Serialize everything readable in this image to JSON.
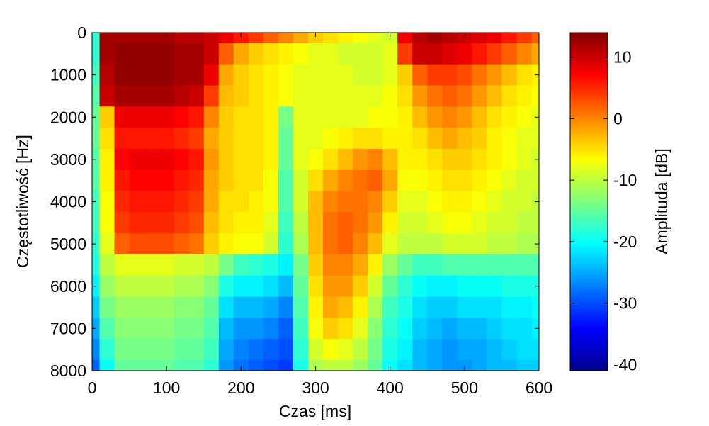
{
  "chart_data": {
    "type": "heatmap",
    "title": "",
    "xlabel": "Czas [ms]",
    "ylabel": "Częstotliwość [Hz]",
    "colorbar_label": "Amplituda [dB]",
    "xlim": [
      0,
      600
    ],
    "ylim": [
      0,
      8000
    ],
    "y_reversed": true,
    "clim": [
      -41,
      14
    ],
    "colormap": "jet",
    "grid": false,
    "x_ticks": [
      "0",
      "100",
      "200",
      "300",
      "400",
      "500",
      "600"
    ],
    "y_ticks": [
      "0",
      "1000",
      "2000",
      "3000",
      "4000",
      "5000",
      "6000",
      "7000",
      "8000"
    ],
    "colorbar_ticks": [
      "10",
      "0",
      "-10",
      "-20",
      "-30",
      "-40"
    ],
    "x_tick_values": [
      0,
      100,
      200,
      300,
      400,
      500,
      600
    ],
    "y_tick_values": [
      0,
      1000,
      2000,
      3000,
      4000,
      5000,
      6000,
      7000,
      8000
    ],
    "colorbar_tick_values": [
      10,
      0,
      -10,
      -20,
      -30,
      -40
    ],
    "time_ms": [
      0,
      20,
      40,
      60,
      80,
      100,
      120,
      140,
      160,
      180,
      200,
      220,
      240,
      260,
      280,
      300,
      320,
      340,
      360,
      380,
      400,
      420,
      440,
      460,
      480,
      500,
      520,
      540,
      560,
      580,
      600
    ],
    "freq_hz": [
      0,
      500,
      1000,
      1500,
      2000,
      2500,
      3000,
      3500,
      4000,
      4500,
      5000,
      5500,
      6000,
      6500,
      7000,
      7500,
      8000
    ],
    "amplitude_db": [
      [
        -18,
        12,
        12,
        12,
        12,
        12,
        11,
        11,
        10,
        8,
        6,
        4,
        2,
        0,
        -2,
        -4,
        -5,
        -6,
        -7,
        -8,
        -9,
        8,
        11,
        12,
        11,
        10,
        9,
        8,
        6,
        4,
        2
      ],
      [
        -18,
        12,
        13,
        13,
        13,
        13,
        12,
        12,
        10,
        2,
        -2,
        -4,
        -5,
        -6,
        -7,
        -8,
        -8,
        -9,
        -9,
        -9,
        -8,
        4,
        10,
        10,
        9,
        8,
        6,
        4,
        2,
        0,
        -2
      ],
      [
        -17,
        11,
        13,
        13,
        13,
        13,
        12,
        12,
        8,
        -2,
        -4,
        -5,
        -6,
        -7,
        -8,
        -8,
        -8,
        -8,
        -9,
        -9,
        -8,
        -4,
        2,
        4,
        4,
        3,
        1,
        -1,
        -3,
        -5,
        -6
      ],
      [
        -16,
        10,
        12,
        12,
        12,
        12,
        11,
        10,
        4,
        -3,
        -4,
        -5,
        -6,
        -7,
        -8,
        -8,
        -8,
        -8,
        -8,
        -8,
        -7,
        -5,
        -1,
        1,
        2,
        1,
        -1,
        -3,
        -5,
        -6,
        -7
      ],
      [
        -15,
        -4,
        8,
        8,
        8,
        8,
        7,
        6,
        0,
        -4,
        -5,
        -5,
        -6,
        -14,
        -8,
        -8,
        -8,
        -8,
        -8,
        -7,
        -7,
        -6,
        -3,
        -1,
        0,
        -1,
        -3,
        -5,
        -6,
        -7,
        -8
      ],
      [
        -15,
        -5,
        6,
        6,
        6,
        6,
        5,
        4,
        -2,
        -4,
        -5,
        -5,
        -6,
        -15,
        -8,
        -8,
        -7,
        -6,
        -5,
        -5,
        -6,
        -6,
        -5,
        -3,
        -2,
        -3,
        -4,
        -6,
        -7,
        -8,
        -8
      ],
      [
        -16,
        -6,
        7,
        8,
        8,
        8,
        7,
        6,
        -1,
        -4,
        -5,
        -5,
        -6,
        -15,
        -8,
        -7,
        -5,
        -3,
        -1,
        0,
        -3,
        -6,
        -6,
        -5,
        -4,
        -4,
        -5,
        -6,
        -7,
        -8,
        -9
      ],
      [
        -16,
        -6,
        6,
        7,
        7,
        7,
        6,
        5,
        -2,
        -4,
        -5,
        -5,
        -7,
        -16,
        -9,
        -5,
        -2,
        0,
        1,
        2,
        -2,
        -7,
        -7,
        -6,
        -5,
        -5,
        -6,
        -7,
        -8,
        -9,
        -9
      ],
      [
        -17,
        -7,
        5,
        6,
        6,
        6,
        5,
        4,
        -2,
        -5,
        -5,
        -6,
        -7,
        -16,
        -9,
        -3,
        0,
        1,
        1,
        0,
        -4,
        -8,
        -8,
        -7,
        -6,
        -6,
        -7,
        -8,
        -9,
        -9,
        -10
      ],
      [
        -17,
        -7,
        4,
        5,
        5,
        5,
        4,
        3,
        -3,
        -5,
        -6,
        -6,
        -8,
        -17,
        -10,
        -3,
        1,
        2,
        1,
        -1,
        -6,
        -9,
        -9,
        -8,
        -7,
        -7,
        -8,
        -9,
        -9,
        -10,
        -10
      ],
      [
        -18,
        -8,
        2,
        3,
        3,
        3,
        2,
        1,
        -4,
        -6,
        -7,
        -7,
        -9,
        -18,
        -11,
        -3,
        1,
        2,
        0,
        -3,
        -8,
        -10,
        -10,
        -10,
        -9,
        -9,
        -9,
        -10,
        -10,
        -11,
        -11
      ],
      [
        -19,
        -10,
        -8,
        -8,
        -8,
        -8,
        -9,
        -9,
        -10,
        -14,
        -17,
        -18,
        -19,
        -21,
        -14,
        -4,
        0,
        0,
        -2,
        -6,
        -12,
        -15,
        -17,
        -17,
        -16,
        -16,
        -16,
        -16,
        -16,
        -16,
        -16
      ],
      [
        -21,
        -12,
        -10,
        -10,
        -10,
        -10,
        -11,
        -11,
        -13,
        -19,
        -21,
        -21,
        -22,
        -24,
        -15,
        -5,
        -1,
        -1,
        -4,
        -9,
        -15,
        -18,
        -20,
        -21,
        -21,
        -20,
        -20,
        -20,
        -19,
        -19,
        -19
      ],
      [
        -23,
        -14,
        -12,
        -12,
        -12,
        -12,
        -13,
        -13,
        -15,
        -22,
        -24,
        -24,
        -25,
        -27,
        -16,
        -6,
        -2,
        -3,
        -6,
        -11,
        -17,
        -19,
        -22,
        -23,
        -23,
        -22,
        -22,
        -22,
        -21,
        -21,
        -20
      ],
      [
        -25,
        -16,
        -13,
        -13,
        -13,
        -13,
        -14,
        -14,
        -16,
        -24,
        -26,
        -26,
        -27,
        -29,
        -17,
        -7,
        -4,
        -5,
        -8,
        -13,
        -18,
        -20,
        -23,
        -24,
        -25,
        -24,
        -24,
        -23,
        -22,
        -22,
        -21
      ],
      [
        -27,
        -18,
        -14,
        -14,
        -14,
        -14,
        -15,
        -15,
        -17,
        -25,
        -27,
        -28,
        -29,
        -30,
        -18,
        -9,
        -7,
        -8,
        -10,
        -14,
        -19,
        -21,
        -24,
        -25,
        -26,
        -25,
        -25,
        -24,
        -23,
        -22,
        -22
      ],
      [
        -29,
        -20,
        -15,
        -15,
        -15,
        -15,
        -16,
        -16,
        -18,
        -26,
        -28,
        -29,
        -30,
        -31,
        -19,
        -11,
        -10,
        -10,
        -12,
        -15,
        -20,
        -22,
        -24,
        -25,
        -26,
        -26,
        -25,
        -24,
        -24,
        -23,
        -23
      ]
    ]
  }
}
